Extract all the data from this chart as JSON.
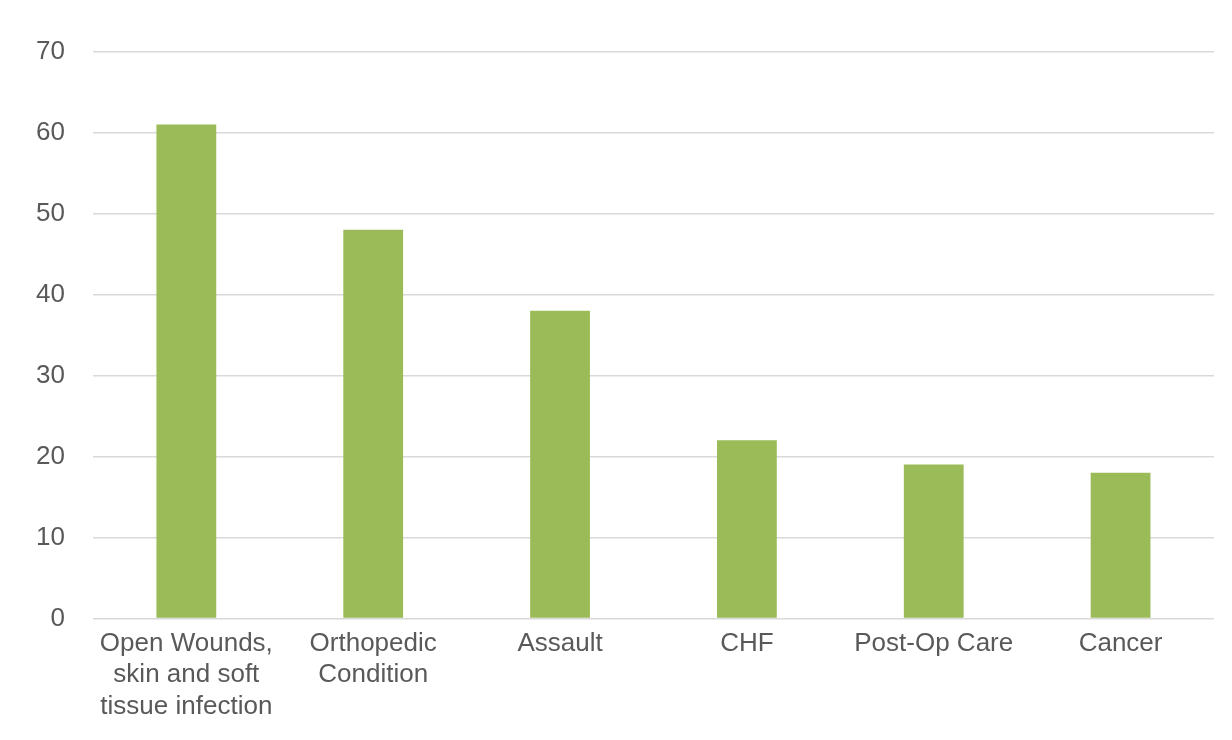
{
  "chart_data": {
    "type": "bar",
    "categories": [
      "Open Wounds, skin and soft tissue infection",
      "Orthopedic Condition",
      "Assault",
      "CHF",
      "Post-Op Care",
      "Cancer"
    ],
    "values": [
      61,
      48,
      38,
      22,
      19,
      18
    ],
    "color": "#9bbb59",
    "ylim": [
      0,
      70
    ],
    "yticks": [
      0,
      10,
      20,
      30,
      40,
      50,
      60,
      70
    ],
    "grid": "y",
    "legend": false
  }
}
